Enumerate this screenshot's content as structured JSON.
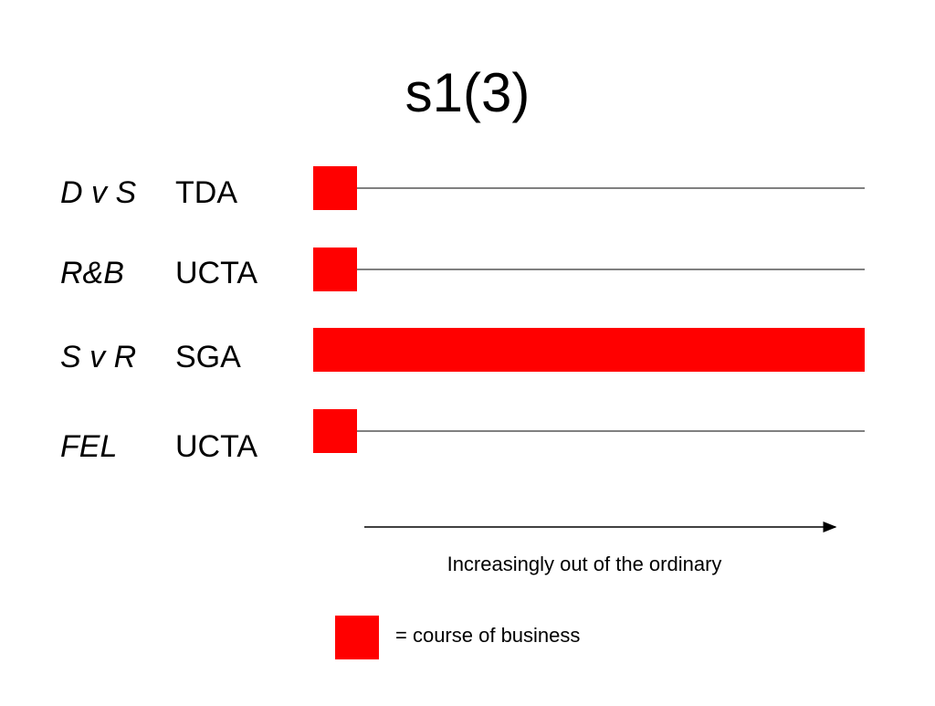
{
  "title": "s1(3)",
  "rows": [
    {
      "case": "D v S",
      "statute": "TDA"
    },
    {
      "case": "R&B",
      "statute": "UCTA"
    },
    {
      "case": "S v R",
      "statute": "SGA"
    },
    {
      "case": "FEL",
      "statute": "UCTA"
    }
  ],
  "arrow_label": "Increasingly out of the ordinary",
  "legend_label": "= course of business"
}
